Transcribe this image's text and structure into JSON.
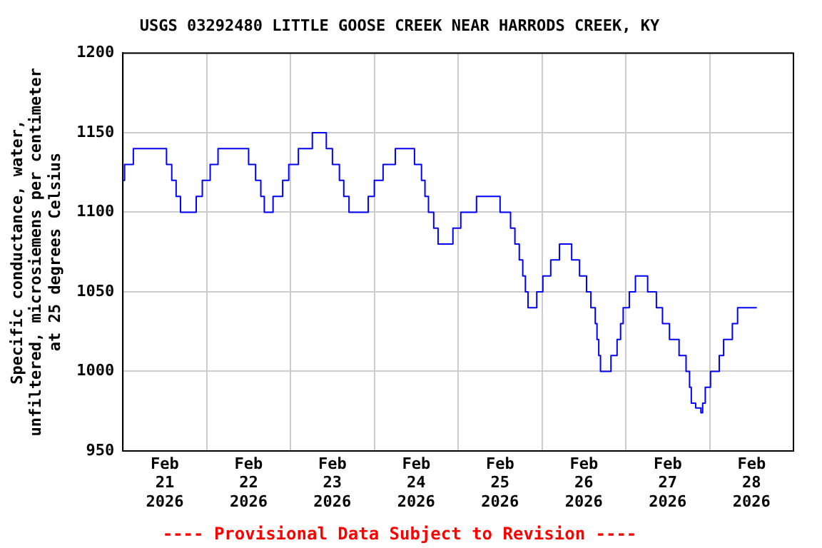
{
  "chart_data": {
    "type": "step",
    "title": "USGS 03292480 LITTLE GOOSE CREEK NEAR HARRODS CREEK, KY",
    "ylabel": "Specific conductance, water,\nunfiltered, microsiemens per centimeter\nat 25 degrees Celsius",
    "annotations": [
      "---- Provisional Data Subject to Revision ----"
    ],
    "x": [
      "2026-02-21T00:00",
      "2026-02-21T00:30",
      "2026-02-21T03:00",
      "2026-02-21T12:30",
      "2026-02-21T14:00",
      "2026-02-21T15:15",
      "2026-02-21T16:30",
      "2026-02-21T21:00",
      "2026-02-21T22:45",
      "2026-02-22T01:00",
      "2026-02-22T03:15",
      "2026-02-22T12:00",
      "2026-02-22T14:00",
      "2026-02-22T15:30",
      "2026-02-22T16:30",
      "2026-02-22T19:00",
      "2026-02-22T21:45",
      "2026-02-22T23:30",
      "2026-02-23T02:15",
      "2026-02-23T06:15",
      "2026-02-23T10:15",
      "2026-02-23T12:00",
      "2026-02-23T14:00",
      "2026-02-23T15:15",
      "2026-02-23T16:45",
      "2026-02-23T22:15",
      "2026-02-24T00:00",
      "2026-02-24T02:30",
      "2026-02-24T06:00",
      "2026-02-24T11:30",
      "2026-02-24T13:30",
      "2026-02-24T14:30",
      "2026-02-24T15:30",
      "2026-02-24T17:00",
      "2026-02-24T18:15",
      "2026-02-24T22:30",
      "2026-02-25T00:45",
      "2026-02-25T05:15",
      "2026-02-25T12:00",
      "2026-02-25T15:00",
      "2026-02-25T16:15",
      "2026-02-25T17:30",
      "2026-02-25T18:30",
      "2026-02-25T19:15",
      "2026-02-25T20:00",
      "2026-02-25T22:30",
      "2026-02-26T00:15",
      "2026-02-26T02:30",
      "2026-02-26T05:00",
      "2026-02-26T08:30",
      "2026-02-26T10:45",
      "2026-02-26T12:45",
      "2026-02-26T14:00",
      "2026-02-26T15:15",
      "2026-02-26T15:45",
      "2026-02-26T16:15",
      "2026-02-26T16:45",
      "2026-02-26T19:45",
      "2026-02-26T21:30",
      "2026-02-26T22:30",
      "2026-02-26T23:15",
      "2026-02-27T01:00",
      "2026-02-27T02:45",
      "2026-02-27T06:15",
      "2026-02-27T08:45",
      "2026-02-27T10:30",
      "2026-02-27T12:30",
      "2026-02-27T15:15",
      "2026-02-27T17:15",
      "2026-02-27T18:15",
      "2026-02-27T18:45",
      "2026-02-27T20:00",
      "2026-02-27T21:30",
      "2026-02-27T22:00",
      "2026-02-27T22:45",
      "2026-02-28T00:15",
      "2026-02-28T02:45",
      "2026-02-28T04:00",
      "2026-02-28T06:30",
      "2026-02-28T08:00",
      "2026-02-28T13:30"
    ],
    "series": [
      {
        "color": "#0000ff",
        "values": [
          1120,
          1130,
          1140,
          1130,
          1120,
          1110,
          1100,
          1110,
          1120,
          1130,
          1140,
          1130,
          1120,
          1110,
          1100,
          1110,
          1120,
          1130,
          1140,
          1150,
          1140,
          1130,
          1120,
          1110,
          1100,
          1110,
          1120,
          1130,
          1140,
          1130,
          1120,
          1110,
          1100,
          1090,
          1080,
          1090,
          1100,
          1110,
          1100,
          1090,
          1080,
          1070,
          1060,
          1050,
          1040,
          1050,
          1060,
          1070,
          1080,
          1070,
          1060,
          1050,
          1040,
          1030,
          1020,
          1010,
          1000,
          1010,
          1020,
          1030,
          1040,
          1050,
          1060,
          1050,
          1040,
          1030,
          1020,
          1010,
          1000,
          990,
          980,
          977,
          974,
          980,
          990,
          1000,
          1010,
          1020,
          1030,
          1040,
          1040
        ]
      }
    ],
    "xlim": [
      "2026-02-21T00:00",
      "2026-03-01T00:00"
    ],
    "xticks": [
      {
        "value": "2026-02-21T00:00",
        "label": null
      },
      {
        "value": "2026-02-21T12:00",
        "label": "Feb\n21\n2026"
      },
      {
        "value": "2026-02-22T00:00",
        "label": null
      },
      {
        "value": "2026-02-22T12:00",
        "label": "Feb\n22\n2026"
      },
      {
        "value": "2026-02-23T00:00",
        "label": null
      },
      {
        "value": "2026-02-23T12:00",
        "label": "Feb\n23\n2026"
      },
      {
        "value": "2026-02-24T00:00",
        "label": null
      },
      {
        "value": "2026-02-24T12:00",
        "label": "Feb\n24\n2026"
      },
      {
        "value": "2026-02-25T00:00",
        "label": null
      },
      {
        "value": "2026-02-25T12:00",
        "label": "Feb\n25\n2026"
      },
      {
        "value": "2026-02-26T00:00",
        "label": null
      },
      {
        "value": "2026-02-26T12:00",
        "label": "Feb\n26\n2026"
      },
      {
        "value": "2026-02-27T00:00",
        "label": null
      },
      {
        "value": "2026-02-27T12:00",
        "label": "Feb\n27\n2026"
      },
      {
        "value": "2026-02-28T00:00",
        "label": null
      },
      {
        "value": "2026-02-28T12:00",
        "label": "Feb\n28\n2026"
      },
      {
        "value": "2026-03-01T00:00",
        "label": null
      }
    ],
    "ylim": [
      950,
      1200
    ],
    "yticks": [
      950,
      1000,
      1050,
      1100,
      1150,
      1200
    ],
    "grid": true,
    "legend": false,
    "marker": "none",
    "line_style": "solid"
  }
}
